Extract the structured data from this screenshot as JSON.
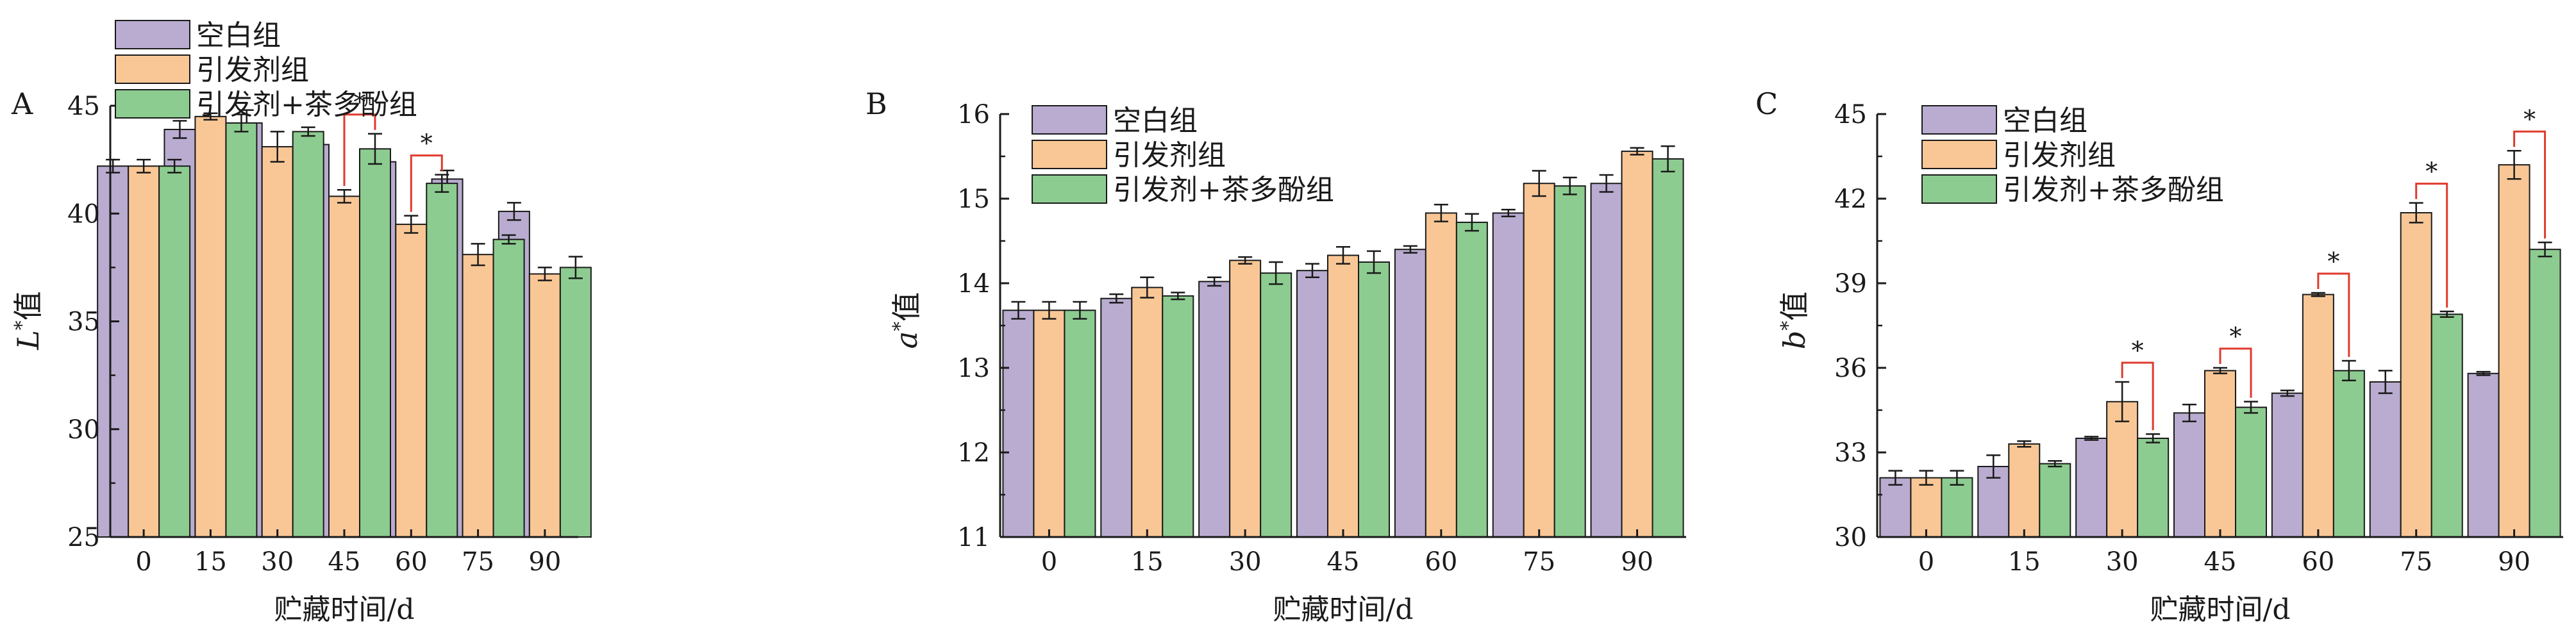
{
  "colors": {
    "blank": "#b9acd0",
    "initiator": "#f9c796",
    "tea": "#8dcc90",
    "axis": "#1a1a1a",
    "significance": "#e03a2e"
  },
  "chart_data": [
    {
      "type": "bar",
      "panel_label": "A",
      "xlabel": "贮藏时间/d",
      "ylabel_main": "L",
      "ylabel_sup": "*",
      "ylabel_suffix": "值",
      "ylim": [
        25,
        45
      ],
      "yticks": [
        25,
        30,
        35,
        40,
        45
      ],
      "categories": [
        "0",
        "15",
        "30",
        "45",
        "60",
        "75",
        "90"
      ],
      "legend_position": "top-left",
      "series": [
        {
          "name": "空白组",
          "color_key": "blank",
          "values": [
            42.2,
            43.9,
            44.2,
            43.2,
            42.4,
            41.6,
            40.1
          ],
          "errors": [
            0.3,
            0.4,
            0.6,
            0.5,
            0.15,
            0.4,
            0.4
          ]
        },
        {
          "name": "引发剂组",
          "color_key": "initiator",
          "values": [
            42.2,
            44.5,
            43.1,
            40.8,
            39.5,
            38.1,
            37.2
          ],
          "errors": [
            0.3,
            0.15,
            0.7,
            0.3,
            0.4,
            0.5,
            0.3
          ]
        },
        {
          "name": "引发剂+茶多酚组",
          "color_key": "tea",
          "values": [
            42.2,
            44.2,
            43.8,
            43.0,
            41.4,
            38.8,
            37.5
          ],
          "errors": [
            0.3,
            0.4,
            0.2,
            0.7,
            0.4,
            0.2,
            0.5
          ]
        }
      ],
      "significance": [
        {
          "category": "45",
          "label": "*"
        },
        {
          "category": "60",
          "label": "*"
        }
      ]
    },
    {
      "type": "bar",
      "panel_label": "B",
      "xlabel": "",
      "ylabel_main": "a",
      "ylabel_sup": "*",
      "ylabel_suffix": "值",
      "ylim": [
        11,
        16
      ],
      "yticks": [
        11,
        12,
        13,
        14,
        15,
        16
      ],
      "categories": [
        "0",
        "15",
        "30",
        "45",
        "60",
        "75",
        "90"
      ],
      "legend_position": "top-left",
      "series": [
        {
          "name": "空白组",
          "color_key": "blank",
          "values": [
            13.68,
            13.82,
            14.02,
            14.15,
            14.4,
            14.83,
            15.18
          ],
          "errors": [
            0.1,
            0.05,
            0.05,
            0.08,
            0.04,
            0.04,
            0.1
          ]
        },
        {
          "name": "引发剂组",
          "color_key": "initiator",
          "values": [
            13.68,
            13.95,
            14.27,
            14.33,
            14.83,
            15.18,
            15.56
          ],
          "errors": [
            0.1,
            0.12,
            0.04,
            0.1,
            0.1,
            0.15,
            0.04
          ]
        },
        {
          "name": "引发剂+茶多酚组",
          "color_key": "tea",
          "values": [
            13.68,
            13.85,
            14.12,
            14.25,
            14.72,
            15.15,
            15.47
          ],
          "errors": [
            0.1,
            0.04,
            0.13,
            0.13,
            0.1,
            0.1,
            0.15
          ]
        }
      ],
      "significance": []
    },
    {
      "type": "bar",
      "panel_label": "C",
      "xlabel": "贮藏时间/d",
      "ylabel_main": "b",
      "ylabel_sup": "*",
      "ylabel_suffix": "值",
      "ylim": [
        30,
        45
      ],
      "yticks": [
        30,
        33,
        36,
        39,
        42,
        45
      ],
      "categories": [
        "0",
        "15",
        "30",
        "45",
        "60",
        "75",
        "90"
      ],
      "legend_position": "top-left",
      "series": [
        {
          "name": "空白组",
          "color_key": "blank",
          "values": [
            32.1,
            32.5,
            33.5,
            34.4,
            35.1,
            35.5,
            35.8
          ],
          "errors": [
            0.25,
            0.4,
            0.06,
            0.3,
            0.1,
            0.4,
            0.06
          ]
        },
        {
          "name": "引发剂组",
          "color_key": "initiator",
          "values": [
            32.1,
            33.3,
            34.8,
            35.9,
            38.6,
            41.5,
            43.2
          ],
          "errors": [
            0.25,
            0.1,
            0.7,
            0.1,
            0.06,
            0.35,
            0.5
          ]
        },
        {
          "name": "引发剂+茶多酚组",
          "color_key": "tea",
          "values": [
            32.1,
            32.6,
            33.5,
            34.6,
            35.9,
            37.9,
            40.2
          ],
          "errors": [
            0.25,
            0.1,
            0.15,
            0.2,
            0.35,
            0.1,
            0.25
          ]
        }
      ],
      "significance": [
        {
          "category": "30",
          "label": "*"
        },
        {
          "category": "45",
          "label": "*"
        },
        {
          "category": "60",
          "label": "*"
        },
        {
          "category": "75",
          "label": "*"
        },
        {
          "category": "90",
          "label": "*"
        }
      ]
    }
  ]
}
